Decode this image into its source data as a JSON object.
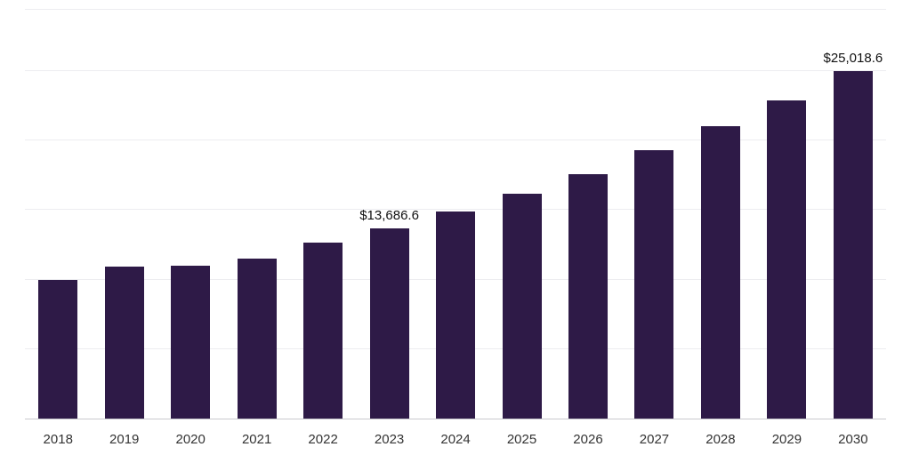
{
  "chart_data": {
    "type": "bar",
    "title": "",
    "xlabel": "",
    "ylabel": "",
    "categories": [
      "2018",
      "2019",
      "2020",
      "2021",
      "2022",
      "2023",
      "2024",
      "2025",
      "2026",
      "2027",
      "2028",
      "2029",
      "2030"
    ],
    "values": [
      10000,
      10900,
      11000,
      11500,
      12650,
      13686.6,
      14900,
      16200,
      17600,
      19300,
      21000,
      22900,
      25018.6
    ],
    "data_labels": [
      "",
      "",
      "",
      "",
      "",
      "$13,686.6",
      "",
      "",
      "",
      "",
      "",
      "",
      "$25,018.6"
    ],
    "ylim": [
      0,
      29400
    ],
    "gridline_values": [
      5000,
      10000,
      15000,
      20000,
      25000
    ],
    "grid": "horizontal",
    "legend": "none"
  },
  "colors": {
    "bar": "#2e1a47",
    "gridline": "#ededf0",
    "axis_line": "#c9c9ce",
    "value_label_text": "#111111",
    "tick_text": "#333333",
    "background": "#ffffff"
  }
}
